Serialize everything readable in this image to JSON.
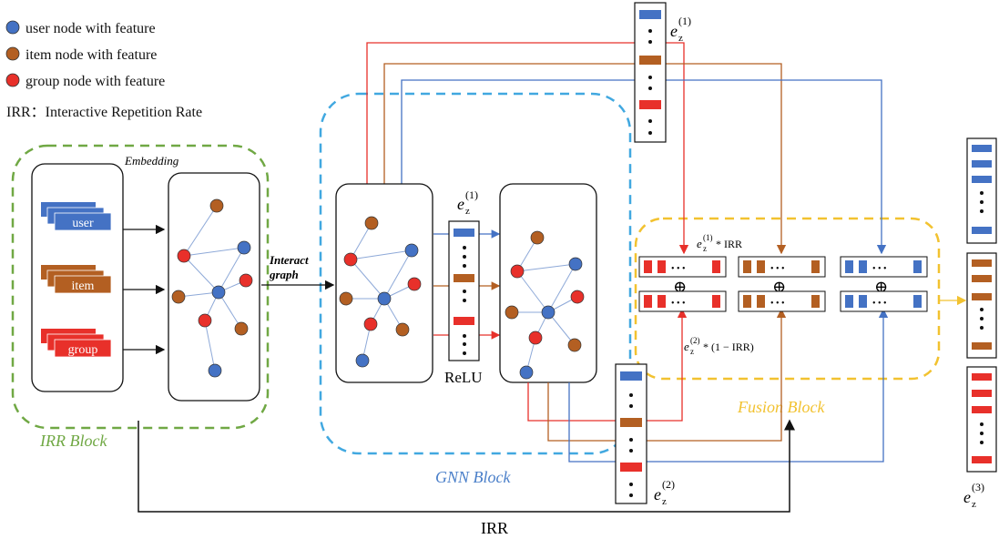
{
  "legend": {
    "user": "user node with feature",
    "item": "item node with feature",
    "group": "group node with feature",
    "irr_definition": "IRR：Interactive Repetition Rate"
  },
  "labels": {
    "embedding": "Embedding",
    "interact_line1": "Interact",
    "interact_line2": "graph",
    "relu": "ReLU",
    "irr_bottom": "IRR",
    "fusion_formula_1_tail": " * IRR",
    "fusion_formula_2_tail": " * (1 − IRR)",
    "ez_base": "e",
    "ez_sub": "z",
    "sup1": "(1)",
    "sup2": "(2)",
    "sup3": "(3)"
  },
  "embedding_cards": [
    "user",
    "item",
    "group"
  ],
  "blocks": {
    "irr": "IRR Block",
    "gnn": "GNN Block",
    "fusion": "Fusion Block"
  },
  "colors": {
    "user": "#4472c4",
    "item": "#b35f22",
    "group": "#e8302a",
    "irr_block": "#70a844",
    "gnn_block": "#41a8e0",
    "fusion_block": "#f2c230",
    "fusion_label": "#f2c230",
    "gnn_label": "#4a7fc9",
    "irr_label": "#70a844"
  },
  "symbols": {
    "oplus": "⊕",
    "ellipsis": "• • •"
  }
}
